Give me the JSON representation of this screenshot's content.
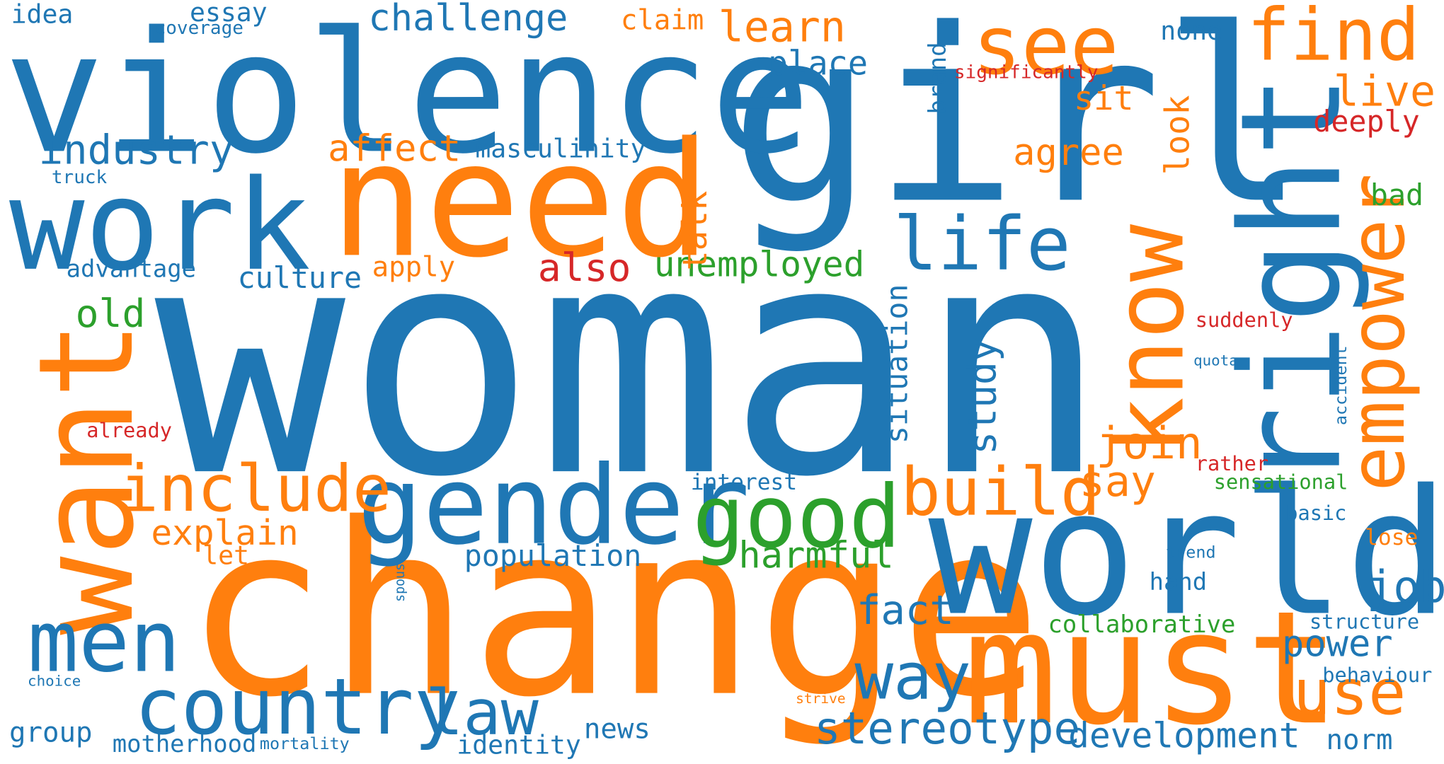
{
  "palette": {
    "blue": "#1f77b4",
    "orange": "#ff7f0e",
    "green": "#2ca02c",
    "red": "#d62728"
  },
  "words": {
    "woman": "woman",
    "change": "change",
    "girl": "girl",
    "violence": "violence",
    "need": "need",
    "world": "world",
    "must": "must",
    "right": "right",
    "want": "want",
    "work": "work",
    "gender": "gender",
    "know": "know",
    "country": "country",
    "men": "men",
    "good": "good",
    "include": "include",
    "empower": "empower",
    "see": "see",
    "find": "find",
    "life": "life",
    "build": "build",
    "way": "way",
    "law": "law",
    "use": "use",
    "stereotype": "stereotype",
    "join": "join",
    "industry": "industry",
    "learn": "learn",
    "challenge": "challenge",
    "fact": "fact",
    "development": "development",
    "affect": "affect",
    "live": "live",
    "say": "say",
    "job": "job",
    "power": "power",
    "harmful": "harmful",
    "unemployed": "unemployed",
    "agree": "agree",
    "explain": "explain",
    "also": "also",
    "study": "study",
    "place": "place",
    "old": "old",
    "look": "look",
    "talk": "talk",
    "situation": "situation",
    "population": "population",
    "culture": "culture",
    "masculinity": "masculinity",
    "bad": "bad",
    "deeply": "deeply",
    "sit": "sit",
    "apply": "apply",
    "claim": "claim",
    "norm": "norm",
    "news": "news",
    "group": "group",
    "identity": "identity",
    "motherhood": "motherhood",
    "collaborative": "collaborative",
    "let": "let",
    "essay": "essay",
    "idea": "idea",
    "none": "none",
    "hand": "hand",
    "advantage": "advantage",
    "interest": "interest",
    "brand": "brand",
    "lose": "lose",
    "sensational": "sensational",
    "behaviour": "behaviour",
    "structure": "structure",
    "suddenly": "suddenly",
    "basic": "basic",
    "rather": "rather",
    "already": "already",
    "significantly": "significantly",
    "coverage": "coverage",
    "truck": "truck",
    "mortality": "mortality",
    "accident": "accident",
    "trend": "trend",
    "quota": "quota",
    "choice": "choice",
    "strive": "strive",
    "spouse": "spouse"
  }
}
